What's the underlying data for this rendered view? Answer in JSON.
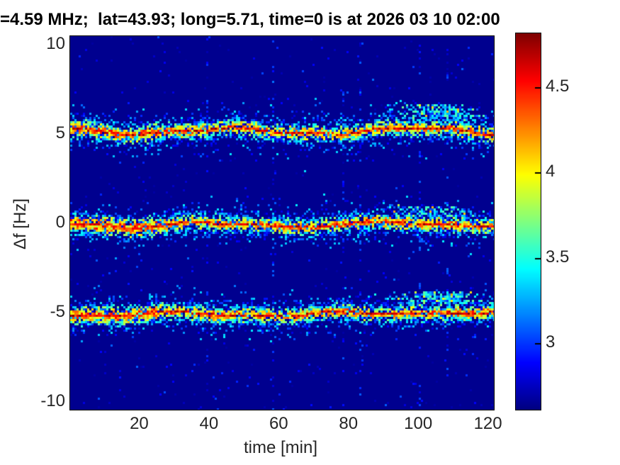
{
  "title": "=4.59 MHz;  lat=43.93; long=5.71, time=0 is at 2026 03 10 02:00",
  "axes": {
    "xlabel": "time [min]",
    "ylabel": "Δf [Hz]",
    "xticks": [
      20,
      40,
      60,
      80,
      100,
      120
    ],
    "yticks": [
      10,
      5,
      0,
      -5,
      -10
    ],
    "xlim": [
      0,
      121.5
    ],
    "ylim": [
      -10.45,
      10.46
    ]
  },
  "colorbar": {
    "tick_labels": [
      "4.5",
      "4",
      "3.5",
      "3"
    ],
    "tick_values": [
      4.5,
      4,
      3.5,
      3
    ],
    "vmin": 2.609,
    "vmax": 4.816
  },
  "colors": {
    "background_navy": "#00008F",
    "figure_bg": "#ffffff",
    "text": "#262626",
    "title_text": "#000000"
  },
  "chart_data": {
    "type": "heatmap",
    "subtype": "doppler-spectrogram",
    "title": "=4.59 MHz;  lat=43.93; long=5.71, time=0 is at 2026 03 10 02:00",
    "xlabel": "time [min]",
    "ylabel": "Δf [Hz]",
    "x_range_min": [
      0,
      121.5
    ],
    "y_range_hz": [
      -10.45,
      10.46
    ],
    "colormap": "jet",
    "clim": [
      2.609,
      4.816
    ],
    "background_value": 2.65,
    "grid": false,
    "legend": "colorbar-right",
    "bands": [
      {
        "name": "upper",
        "base_hz": 5.2,
        "amp1": 0.16,
        "period1": 52,
        "phase1": 32,
        "amp2": 0.06,
        "period2": 21,
        "bump_amp": 0.08,
        "bump_t": 106,
        "bump_sigma": 10,
        "cloud": {
          "t_center": 106,
          "t_sigma": 9,
          "offset_hz": 0.8,
          "spread_hz": 0.4,
          "strength": 1.3
        },
        "left_boost": 0.12
      },
      {
        "name": "center",
        "base_hz": -0.05,
        "amp1": 0.12,
        "period1": 48,
        "phase1": 28,
        "amp2": 0.05,
        "period2": 26,
        "bump_amp": 0.1,
        "bump_t": 100,
        "bump_sigma": 12,
        "cloud": {
          "t_center": 104,
          "t_sigma": 9,
          "offset_hz": 0.55,
          "spread_hz": 0.3,
          "strength": 0.8
        },
        "left_boost": 0.25
      },
      {
        "name": "lower",
        "base_hz": -5.05,
        "amp1": 0.1,
        "period1": 50,
        "phase1": 18,
        "amp2": 0.05,
        "period2": 23,
        "bump_amp": 0.22,
        "bump_t": 107,
        "bump_sigma": 9,
        "cloud": {
          "t_center": 105,
          "t_sigma": 9,
          "offset_hz": 0.7,
          "spread_hz": 0.35,
          "strength": 1.1
        },
        "left_boost": 0.2
      }
    ],
    "artifact_columns_min": [
      39,
      58,
      78,
      83,
      100,
      108
    ],
    "core_value_range": [
      4.3,
      4.82
    ],
    "inner_speckle_sigma_hz": 0.28,
    "outer_speckle_sigma_hz": 0.6
  }
}
